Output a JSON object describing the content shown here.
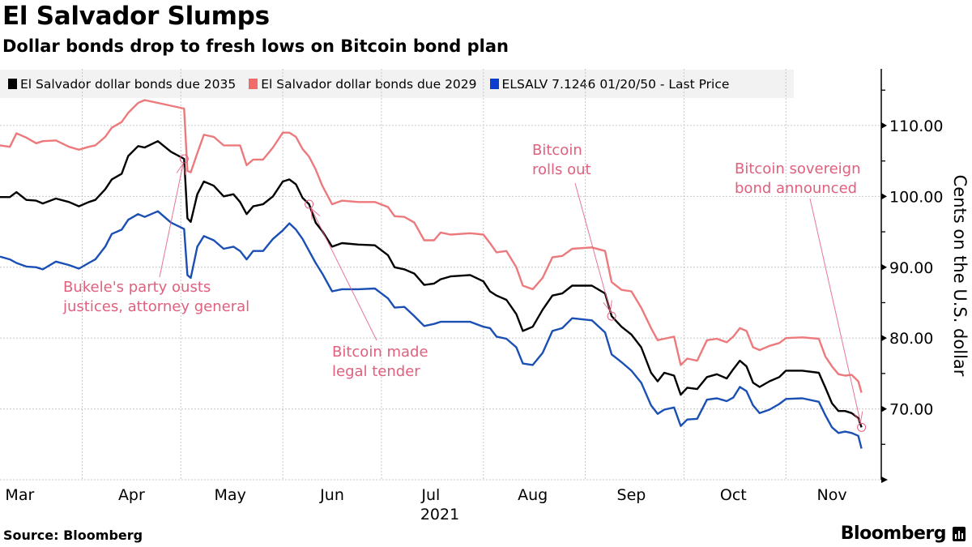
{
  "header": {
    "title": "El Salvador Slumps",
    "subtitle": "Dollar bonds drop to fresh lows on Bitcoin bond plan"
  },
  "footer": {
    "source": "Source: Bloomberg",
    "brand": "Bloomberg"
  },
  "chart_data": {
    "type": "line",
    "title": "El Salvador Slumps",
    "subtitle": "Dollar bonds drop to fresh lows on Bitcoin bond plan",
    "xlabel": "",
    "ylabel": "Cents on the U.S. dollar",
    "xlim": [
      "2021-03-07",
      "2021-11-30"
    ],
    "ylim": [
      60,
      118
    ],
    "yticks": [
      70,
      80,
      90,
      100,
      110
    ],
    "ytick_labels": [
      "70.00",
      "80.00",
      "90.00",
      "100.00",
      "110.00"
    ],
    "yminor_ticks": [
      65,
      75,
      85,
      95,
      105,
      115
    ],
    "month_starts": [
      "2021-04-01",
      "2021-05-01",
      "2021-06-01",
      "2021-07-01",
      "2021-08-01",
      "2021-09-01",
      "2021-10-01",
      "2021-11-01"
    ],
    "xtick_labels": [
      {
        "label": "Mar",
        "date": "2021-03-13"
      },
      {
        "label": "Apr",
        "date": "2021-04-16"
      },
      {
        "label": "May",
        "date": "2021-05-16"
      },
      {
        "label": "Jun",
        "date": "2021-06-16"
      },
      {
        "label": "Jul",
        "date": "2021-07-16"
      },
      {
        "label": "Aug",
        "date": "2021-08-16"
      },
      {
        "label": "Sep",
        "date": "2021-09-15"
      },
      {
        "label": "Oct",
        "date": "2021-10-16"
      },
      {
        "label": "Nov",
        "date": "2021-11-15"
      }
    ],
    "year_label": "2021",
    "grid": true,
    "legend_position": "top",
    "x": [
      "2021-03-07",
      "2021-03-10",
      "2021-03-12",
      "2021-03-15",
      "2021-03-18",
      "2021-03-20",
      "2021-03-24",
      "2021-03-28",
      "2021-03-31",
      "2021-04-03",
      "2021-04-05",
      "2021-04-08",
      "2021-04-10",
      "2021-04-13",
      "2021-04-15",
      "2021-04-18",
      "2021-04-20",
      "2021-04-24",
      "2021-04-28",
      "2021-05-02",
      "2021-05-03",
      "2021-05-04",
      "2021-05-06",
      "2021-05-08",
      "2021-05-11",
      "2021-05-14",
      "2021-05-17",
      "2021-05-19",
      "2021-05-21",
      "2021-05-23",
      "2021-05-26",
      "2021-05-29",
      "2021-06-01",
      "2021-06-03",
      "2021-06-05",
      "2021-06-07",
      "2021-06-09",
      "2021-06-11",
      "2021-06-13",
      "2021-06-16",
      "2021-06-19",
      "2021-06-24",
      "2021-06-29",
      "2021-07-03",
      "2021-07-05",
      "2021-07-08",
      "2021-07-11",
      "2021-07-14",
      "2021-07-17",
      "2021-07-19",
      "2021-07-22",
      "2021-07-28",
      "2021-08-01",
      "2021-08-03",
      "2021-08-05",
      "2021-08-08",
      "2021-08-11",
      "2021-08-13",
      "2021-08-16",
      "2021-08-19",
      "2021-08-22",
      "2021-08-25",
      "2021-08-28",
      "2021-09-03",
      "2021-09-07",
      "2021-09-09",
      "2021-09-12",
      "2021-09-15",
      "2021-09-18",
      "2021-09-21",
      "2021-09-23",
      "2021-09-25",
      "2021-09-28",
      "2021-09-30",
      "2021-10-02",
      "2021-10-05",
      "2021-10-08",
      "2021-10-11",
      "2021-10-14",
      "2021-10-16",
      "2021-10-18",
      "2021-10-20",
      "2021-10-22",
      "2021-10-24",
      "2021-10-27",
      "2021-10-30",
      "2021-11-01",
      "2021-11-06",
      "2021-11-11",
      "2021-11-13",
      "2021-11-15",
      "2021-11-17",
      "2021-11-19",
      "2021-11-21",
      "2021-11-23",
      "2021-11-24"
    ],
    "series": [
      {
        "name": "El Salvador dollar bonds due 2035",
        "color": "#000000",
        "legend_color": "#000000",
        "values": [
          99.9,
          99.9,
          100.6,
          99.5,
          99.4,
          99.0,
          99.7,
          99.2,
          98.6,
          99.2,
          99.5,
          101.0,
          102.4,
          103.2,
          105.7,
          107.1,
          106.9,
          107.8,
          106.3,
          105.3,
          96.9,
          96.4,
          100.3,
          102.1,
          101.5,
          100.0,
          100.3,
          99.2,
          97.5,
          98.6,
          98.9,
          100.0,
          102.1,
          102.4,
          101.7,
          99.8,
          98.9,
          96.3,
          95.1,
          92.9,
          93.4,
          93.2,
          93.1,
          91.7,
          90.0,
          89.7,
          89.1,
          87.5,
          87.7,
          88.3,
          88.7,
          88.9,
          88.0,
          86.6,
          86.0,
          85.4,
          83.4,
          81.0,
          81.6,
          84.0,
          86.0,
          86.3,
          87.4,
          87.4,
          86.3,
          83.1,
          81.6,
          80.5,
          78.7,
          75.1,
          73.9,
          75.1,
          74.7,
          72.0,
          73.0,
          72.8,
          74.5,
          74.9,
          74.3,
          75.6,
          76.8,
          76.0,
          73.7,
          73.1,
          73.9,
          74.5,
          75.4,
          75.4,
          75.1,
          73.0,
          70.8,
          69.7,
          69.7,
          69.4,
          68.7,
          67.4
        ]
      },
      {
        "name": "El Salvador dollar bonds due 2029",
        "color": "#ec7a7c",
        "legend_color": "#f26b6b",
        "values": [
          107.2,
          107.0,
          108.9,
          108.3,
          107.5,
          107.8,
          107.9,
          107.0,
          106.6,
          107.0,
          107.2,
          108.4,
          109.7,
          110.5,
          111.8,
          113.2,
          113.6,
          113.2,
          112.8,
          112.4,
          103.6,
          103.4,
          106.1,
          108.7,
          108.4,
          107.2,
          107.2,
          107.2,
          104.4,
          105.2,
          105.2,
          106.9,
          109.0,
          109.0,
          108.4,
          106.7,
          105.6,
          103.8,
          101.5,
          98.9,
          99.4,
          99.2,
          99.2,
          98.5,
          97.2,
          97.1,
          96.3,
          93.8,
          93.8,
          94.9,
          94.6,
          94.8,
          94.6,
          93.4,
          92.1,
          92.3,
          90.0,
          87.4,
          86.9,
          88.5,
          91.4,
          91.6,
          92.6,
          92.8,
          92.3,
          87.9,
          86.8,
          86.6,
          84.3,
          81.4,
          79.7,
          79.9,
          80.2,
          76.2,
          77.1,
          76.8,
          79.7,
          79.9,
          79.4,
          80.2,
          81.4,
          81.0,
          78.7,
          78.3,
          78.9,
          79.3,
          80.0,
          80.1,
          79.9,
          77.4,
          76.0,
          74.9,
          74.7,
          74.8,
          73.9,
          72.3
        ]
      },
      {
        "name": "ELSALV 7.1246 01/20/50 - Last Price",
        "color": "#1a4fb4",
        "legend_color": "#0a3fcf",
        "values": [
          91.5,
          91.1,
          90.6,
          90.1,
          90.0,
          89.7,
          90.8,
          90.3,
          89.8,
          90.6,
          91.1,
          92.9,
          94.7,
          95.3,
          96.7,
          97.5,
          97.1,
          97.9,
          96.3,
          95.4,
          88.9,
          88.5,
          92.9,
          94.4,
          93.8,
          92.6,
          92.9,
          92.3,
          91.1,
          92.3,
          92.3,
          94.0,
          95.2,
          96.2,
          95.3,
          94.0,
          92.3,
          90.6,
          89.1,
          86.6,
          86.9,
          86.9,
          87.0,
          85.6,
          84.3,
          84.4,
          83.1,
          81.7,
          82.0,
          82.3,
          82.3,
          82.3,
          81.6,
          81.4,
          80.2,
          79.9,
          78.7,
          76.4,
          76.2,
          77.9,
          81.0,
          81.4,
          82.8,
          82.5,
          80.8,
          77.7,
          76.6,
          75.4,
          73.7,
          70.5,
          69.3,
          69.9,
          70.2,
          67.6,
          68.5,
          68.6,
          71.3,
          71.5,
          71.1,
          71.6,
          73.1,
          72.5,
          70.5,
          69.4,
          69.9,
          70.7,
          71.4,
          71.5,
          71.0,
          69.1,
          67.4,
          66.6,
          66.8,
          66.6,
          66.2,
          64.4
        ]
      }
    ],
    "annotation_color": "#e0607e",
    "annotations": [
      {
        "lines": [
          "Bukele's party ousts",
          "justices, attorney general"
        ],
        "date": "2021-05-02",
        "value": 105.3
      },
      {
        "lines": [
          "Bitcoin made",
          "legal tender"
        ],
        "date": "2021-06-09",
        "value": 98.9
      },
      {
        "lines": [
          "Bitcoin",
          "rolls out"
        ],
        "date": "2021-09-09",
        "value": 83.1
      },
      {
        "lines": [
          "Bitcoin sovereign",
          "bond announced"
        ],
        "date": "2021-11-24",
        "value": 67.4
      }
    ]
  }
}
